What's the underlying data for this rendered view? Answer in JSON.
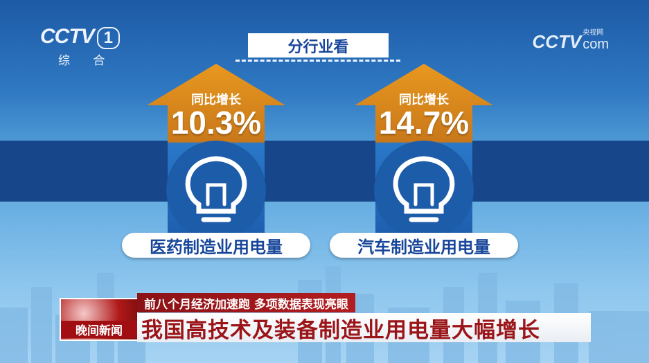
{
  "channel": {
    "logo": "CCTV",
    "number": "1",
    "name": "综 合"
  },
  "watermark": {
    "logo": "CCTV",
    "cn": "央视网",
    "domain": "com"
  },
  "section_title": "分行业看",
  "cards": [
    {
      "caption": "同比增长",
      "value": "10.3%",
      "industry": "医药制造业用电量"
    },
    {
      "caption": "同比增长",
      "value": "14.7%",
      "industry": "汽车制造业用电量"
    }
  ],
  "program": "晚间新闻",
  "subtitle": "前八个月经济加速跑 多项数据表现亮眼",
  "headline": "我国高技术及装备制造业用电量大幅增长",
  "colors": {
    "arrow_top": "#d88a1c",
    "arrow_bottom": "#1f66b8",
    "band": "#17468a",
    "headline_text": "#9b1418"
  }
}
